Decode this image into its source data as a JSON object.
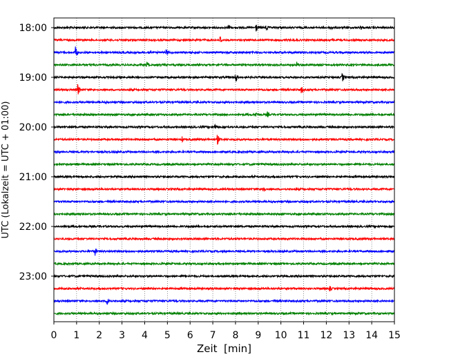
{
  "chart_data": {
    "type": "line",
    "xlabel": "Zeit  [min]",
    "ylabel": "UTC (Lokalzeit = UTC + 01:00)",
    "xlim": [
      0,
      15
    ],
    "x_ticks": [
      "0",
      "1",
      "2",
      "3",
      "4",
      "5",
      "6",
      "7",
      "8",
      "9",
      "10",
      "11",
      "12",
      "13",
      "14",
      "15"
    ],
    "y_tick_labels": [
      "18:00",
      "19:00",
      "20:00",
      "21:00",
      "22:00",
      "23:00"
    ],
    "grid": "vertical dotted lines at each minute",
    "trace_colors": [
      "#000000",
      "#ff0000",
      "#0000ff",
      "#008000"
    ],
    "traces": [
      {
        "start": "18:00",
        "color": "#000000",
        "events": [
          {
            "t": 7.7,
            "a": 7
          },
          {
            "t": 8.9,
            "a": 8
          },
          {
            "t": 9.35,
            "a": 7
          },
          {
            "t": 12.2,
            "a": 5
          },
          {
            "t": 13.5,
            "a": 5
          }
        ]
      },
      {
        "start": "18:15",
        "color": "#ff0000",
        "events": [
          {
            "t": 7.3,
            "a": 9
          }
        ]
      },
      {
        "start": "18:30",
        "color": "#0000ff",
        "events": [
          {
            "t": 0.95,
            "a": 11
          },
          {
            "t": 4.2,
            "a": 6
          },
          {
            "t": 4.95,
            "a": 6
          }
        ]
      },
      {
        "start": "18:45",
        "color": "#008000",
        "events": [
          {
            "t": 4.1,
            "a": 7
          },
          {
            "t": 10.7,
            "a": 6
          }
        ]
      },
      {
        "start": "19:00",
        "color": "#000000",
        "events": [
          {
            "t": 8.0,
            "a": 9
          },
          {
            "t": 12.7,
            "a": 8
          }
        ]
      },
      {
        "start": "19:15",
        "color": "#ff0000",
        "events": [
          {
            "t": 1.05,
            "a": 10
          },
          {
            "t": 10.9,
            "a": 7
          }
        ]
      },
      {
        "start": "19:30",
        "color": "#0000ff",
        "events": [
          {
            "t": 0.3,
            "a": 3
          },
          {
            "t": 2.3,
            "a": 3
          }
        ]
      },
      {
        "start": "19:45",
        "color": "#008000",
        "events": [
          {
            "t": 8.9,
            "a": 5
          },
          {
            "t": 9.4,
            "a": 5
          }
        ]
      },
      {
        "start": "20:00",
        "color": "#000000",
        "events": [
          {
            "t": 7.1,
            "a": 7
          }
        ]
      },
      {
        "start": "20:15",
        "color": "#ff0000",
        "events": [
          {
            "t": 5.65,
            "a": 5
          },
          {
            "t": 7.2,
            "a": 9
          }
        ]
      },
      {
        "start": "20:30",
        "color": "#0000ff",
        "events": []
      },
      {
        "start": "20:45",
        "color": "#008000",
        "events": []
      },
      {
        "start": "21:00",
        "color": "#000000",
        "events": []
      },
      {
        "start": "21:15",
        "color": "#ff0000",
        "events": [
          {
            "t": 9.2,
            "a": 9
          }
        ]
      },
      {
        "start": "21:30",
        "color": "#0000ff",
        "events": []
      },
      {
        "start": "21:45",
        "color": "#008000",
        "events": []
      },
      {
        "start": "22:00",
        "color": "#000000",
        "events": [
          {
            "t": 0.5,
            "a": 3
          },
          {
            "t": 2.0,
            "a": 3
          }
        ]
      },
      {
        "start": "22:15",
        "color": "#ff0000",
        "events": []
      },
      {
        "start": "22:30",
        "color": "#0000ff",
        "events": [
          {
            "t": 1.8,
            "a": 8
          }
        ]
      },
      {
        "start": "22:45",
        "color": "#008000",
        "events": []
      },
      {
        "start": "23:00",
        "color": "#000000",
        "events": []
      },
      {
        "start": "23:15",
        "color": "#ff0000",
        "events": [
          {
            "t": 12.15,
            "a": 5
          }
        ]
      },
      {
        "start": "23:30",
        "color": "#0000ff",
        "events": [
          {
            "t": 2.35,
            "a": 11
          }
        ]
      },
      {
        "start": "23:45",
        "color": "#008000",
        "events": []
      }
    ]
  }
}
